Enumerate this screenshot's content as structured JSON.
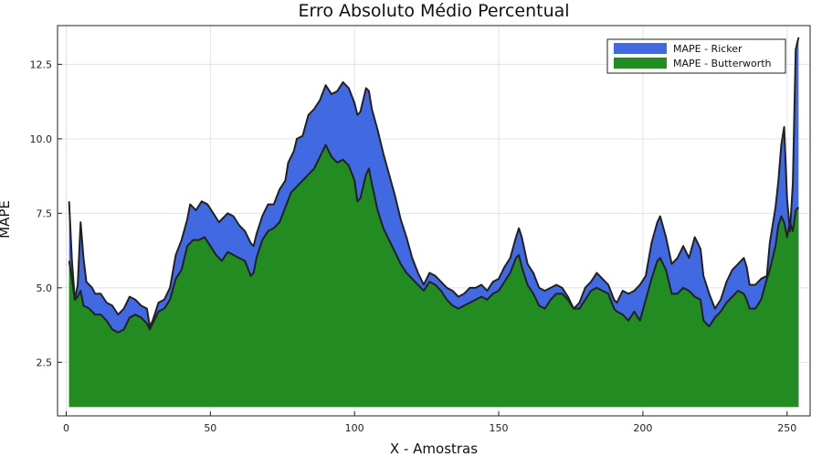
{
  "chart_data": {
    "type": "area",
    "title": "Erro Absoluto Médio Percentual",
    "xlabel": "X - Amostras",
    "ylabel": "MAPE",
    "xlim": [
      -3,
      258
    ],
    "ylim": [
      0.7,
      13.8
    ],
    "baseline": 1.0,
    "grid": true,
    "legend_position": "top-right",
    "x_ticks": [
      0,
      50,
      100,
      150,
      200,
      250
    ],
    "y_ticks": [
      2.5,
      5.0,
      7.5,
      10.0,
      12.5
    ],
    "x_tick_labels": [
      "0",
      "50",
      "100",
      "150",
      "200",
      "250"
    ],
    "y_tick_labels": [
      "2.5",
      "5.0",
      "7.5",
      "10.0",
      "12.5"
    ],
    "series": [
      {
        "name": "MAPE - Ricker",
        "color": "#4169e1",
        "points": [
          [
            1,
            7.9
          ],
          [
            2,
            5.9
          ],
          [
            3,
            4.6
          ],
          [
            4,
            5.1
          ],
          [
            5,
            7.2
          ],
          [
            6,
            6.0
          ],
          [
            7,
            5.2
          ],
          [
            8,
            5.1
          ],
          [
            9,
            5.0
          ],
          [
            10,
            4.8
          ],
          [
            12,
            4.8
          ],
          [
            14,
            4.5
          ],
          [
            16,
            4.4
          ],
          [
            18,
            4.1
          ],
          [
            20,
            4.3
          ],
          [
            22,
            4.7
          ],
          [
            24,
            4.6
          ],
          [
            26,
            4.4
          ],
          [
            28,
            4.3
          ],
          [
            29,
            3.7
          ],
          [
            30,
            3.9
          ],
          [
            32,
            4.5
          ],
          [
            34,
            4.6
          ],
          [
            36,
            5.0
          ],
          [
            38,
            6.1
          ],
          [
            40,
            6.6
          ],
          [
            42,
            7.3
          ],
          [
            43,
            7.8
          ],
          [
            45,
            7.6
          ],
          [
            47,
            7.9
          ],
          [
            49,
            7.8
          ],
          [
            51,
            7.5
          ],
          [
            53,
            7.2
          ],
          [
            56,
            7.5
          ],
          [
            58,
            7.4
          ],
          [
            60,
            7.1
          ],
          [
            62,
            6.9
          ],
          [
            64,
            6.5
          ],
          [
            65,
            6.4
          ],
          [
            66,
            6.8
          ],
          [
            68,
            7.4
          ],
          [
            70,
            7.8
          ],
          [
            72,
            7.8
          ],
          [
            74,
            8.3
          ],
          [
            76,
            8.6
          ],
          [
            77,
            9.2
          ],
          [
            79,
            9.6
          ],
          [
            80,
            10.0
          ],
          [
            82,
            10.1
          ],
          [
            84,
            10.8
          ],
          [
            86,
            11.0
          ],
          [
            88,
            11.3
          ],
          [
            90,
            11.8
          ],
          [
            92,
            11.5
          ],
          [
            94,
            11.6
          ],
          [
            96,
            11.9
          ],
          [
            98,
            11.7
          ],
          [
            100,
            11.2
          ],
          [
            101,
            10.8
          ],
          [
            102,
            10.9
          ],
          [
            104,
            11.7
          ],
          [
            105,
            11.6
          ],
          [
            106,
            11.0
          ],
          [
            108,
            10.3
          ],
          [
            110,
            9.5
          ],
          [
            112,
            8.8
          ],
          [
            114,
            8.1
          ],
          [
            116,
            7.3
          ],
          [
            118,
            6.7
          ],
          [
            120,
            6.0
          ],
          [
            122,
            5.5
          ],
          [
            124,
            5.1
          ],
          [
            126,
            5.5
          ],
          [
            128,
            5.4
          ],
          [
            130,
            5.2
          ],
          [
            132,
            5.0
          ],
          [
            134,
            4.9
          ],
          [
            136,
            4.7
          ],
          [
            138,
            4.8
          ],
          [
            140,
            5.0
          ],
          [
            142,
            5.0
          ],
          [
            144,
            5.1
          ],
          [
            146,
            4.9
          ],
          [
            148,
            5.2
          ],
          [
            150,
            5.3
          ],
          [
            152,
            5.7
          ],
          [
            154,
            6.0
          ],
          [
            156,
            6.7
          ],
          [
            157,
            7.0
          ],
          [
            158,
            6.7
          ],
          [
            160,
            5.8
          ],
          [
            162,
            5.5
          ],
          [
            164,
            5.0
          ],
          [
            166,
            4.9
          ],
          [
            168,
            5.0
          ],
          [
            170,
            5.1
          ],
          [
            172,
            5.0
          ],
          [
            174,
            4.7
          ],
          [
            176,
            4.3
          ],
          [
            178,
            4.5
          ],
          [
            180,
            5.0
          ],
          [
            182,
            5.2
          ],
          [
            184,
            5.5
          ],
          [
            186,
            5.3
          ],
          [
            188,
            5.1
          ],
          [
            190,
            4.6
          ],
          [
            191,
            4.5
          ],
          [
            193,
            4.9
          ],
          [
            195,
            4.8
          ],
          [
            197,
            4.9
          ],
          [
            199,
            5.1
          ],
          [
            201,
            5.4
          ],
          [
            203,
            6.5
          ],
          [
            205,
            7.2
          ],
          [
            206,
            7.4
          ],
          [
            208,
            6.7
          ],
          [
            210,
            5.8
          ],
          [
            212,
            6.0
          ],
          [
            214,
            6.4
          ],
          [
            216,
            6.0
          ],
          [
            218,
            6.7
          ],
          [
            220,
            6.3
          ],
          [
            221,
            5.4
          ],
          [
            223,
            4.8
          ],
          [
            225,
            4.3
          ],
          [
            227,
            4.6
          ],
          [
            229,
            5.2
          ],
          [
            231,
            5.6
          ],
          [
            233,
            5.8
          ],
          [
            235,
            6.0
          ],
          [
            236,
            5.7
          ],
          [
            237,
            5.1
          ],
          [
            239,
            5.1
          ],
          [
            241,
            5.3
          ],
          [
            243,
            5.4
          ],
          [
            244,
            6.5
          ],
          [
            246,
            7.7
          ],
          [
            247,
            8.6
          ],
          [
            248,
            9.8
          ],
          [
            249,
            10.4
          ],
          [
            250,
            8.0
          ],
          [
            251,
            6.9
          ],
          [
            252,
            8.5
          ],
          [
            253,
            13.0
          ],
          [
            254,
            13.4
          ]
        ]
      },
      {
        "name": "MAPE - Butterworth",
        "color": "#228b22",
        "points": [
          [
            1,
            5.9
          ],
          [
            2,
            5.3
          ],
          [
            3,
            4.6
          ],
          [
            4,
            4.7
          ],
          [
            5,
            4.9
          ],
          [
            6,
            4.4
          ],
          [
            8,
            4.3
          ],
          [
            10,
            4.1
          ],
          [
            12,
            4.1
          ],
          [
            14,
            3.9
          ],
          [
            16,
            3.6
          ],
          [
            18,
            3.5
          ],
          [
            20,
            3.6
          ],
          [
            22,
            4.0
          ],
          [
            24,
            4.1
          ],
          [
            26,
            4.0
          ],
          [
            28,
            3.8
          ],
          [
            29,
            3.6
          ],
          [
            30,
            3.8
          ],
          [
            32,
            4.2
          ],
          [
            34,
            4.3
          ],
          [
            36,
            4.6
          ],
          [
            38,
            5.3
          ],
          [
            40,
            5.6
          ],
          [
            42,
            6.4
          ],
          [
            44,
            6.6
          ],
          [
            46,
            6.6
          ],
          [
            48,
            6.7
          ],
          [
            50,
            6.4
          ],
          [
            52,
            6.1
          ],
          [
            54,
            5.9
          ],
          [
            56,
            6.2
          ],
          [
            58,
            6.1
          ],
          [
            60,
            6.0
          ],
          [
            62,
            5.9
          ],
          [
            64,
            5.4
          ],
          [
            65,
            5.5
          ],
          [
            66,
            6.0
          ],
          [
            68,
            6.6
          ],
          [
            70,
            6.9
          ],
          [
            72,
            7.0
          ],
          [
            74,
            7.2
          ],
          [
            76,
            7.7
          ],
          [
            78,
            8.2
          ],
          [
            80,
            8.4
          ],
          [
            82,
            8.6
          ],
          [
            84,
            8.8
          ],
          [
            86,
            9.0
          ],
          [
            88,
            9.4
          ],
          [
            90,
            9.8
          ],
          [
            92,
            9.4
          ],
          [
            94,
            9.2
          ],
          [
            96,
            9.3
          ],
          [
            98,
            9.1
          ],
          [
            100,
            8.6
          ],
          [
            101,
            7.9
          ],
          [
            102,
            8.0
          ],
          [
            104,
            8.8
          ],
          [
            105,
            9.0
          ],
          [
            106,
            8.5
          ],
          [
            108,
            7.6
          ],
          [
            110,
            7.0
          ],
          [
            112,
            6.6
          ],
          [
            114,
            6.2
          ],
          [
            116,
            5.8
          ],
          [
            118,
            5.5
          ],
          [
            120,
            5.3
          ],
          [
            122,
            5.1
          ],
          [
            124,
            4.9
          ],
          [
            126,
            5.2
          ],
          [
            128,
            5.1
          ],
          [
            130,
            4.9
          ],
          [
            132,
            4.6
          ],
          [
            134,
            4.4
          ],
          [
            136,
            4.3
          ],
          [
            138,
            4.4
          ],
          [
            140,
            4.5
          ],
          [
            142,
            4.6
          ],
          [
            144,
            4.7
          ],
          [
            146,
            4.6
          ],
          [
            148,
            4.8
          ],
          [
            150,
            4.9
          ],
          [
            152,
            5.2
          ],
          [
            154,
            5.5
          ],
          [
            156,
            6.0
          ],
          [
            157,
            6.1
          ],
          [
            158,
            5.7
          ],
          [
            160,
            5.1
          ],
          [
            162,
            4.8
          ],
          [
            164,
            4.4
          ],
          [
            166,
            4.3
          ],
          [
            168,
            4.6
          ],
          [
            170,
            4.8
          ],
          [
            172,
            4.8
          ],
          [
            174,
            4.6
          ],
          [
            176,
            4.3
          ],
          [
            178,
            4.3
          ],
          [
            180,
            4.6
          ],
          [
            182,
            4.9
          ],
          [
            184,
            5.0
          ],
          [
            186,
            4.9
          ],
          [
            188,
            4.8
          ],
          [
            190,
            4.3
          ],
          [
            191,
            4.2
          ],
          [
            193,
            4.1
          ],
          [
            195,
            3.9
          ],
          [
            197,
            4.2
          ],
          [
            199,
            3.9
          ],
          [
            201,
            4.6
          ],
          [
            203,
            5.3
          ],
          [
            205,
            5.9
          ],
          [
            206,
            6.0
          ],
          [
            208,
            5.6
          ],
          [
            210,
            4.8
          ],
          [
            212,
            4.8
          ],
          [
            214,
            5.0
          ],
          [
            216,
            4.9
          ],
          [
            218,
            4.7
          ],
          [
            220,
            4.6
          ],
          [
            221,
            3.9
          ],
          [
            223,
            3.7
          ],
          [
            225,
            4.0
          ],
          [
            227,
            4.2
          ],
          [
            229,
            4.5
          ],
          [
            231,
            4.7
          ],
          [
            233,
            4.9
          ],
          [
            235,
            4.8
          ],
          [
            236,
            4.6
          ],
          [
            237,
            4.3
          ],
          [
            239,
            4.3
          ],
          [
            241,
            4.6
          ],
          [
            243,
            5.3
          ],
          [
            244,
            5.6
          ],
          [
            246,
            6.4
          ],
          [
            247,
            7.1
          ],
          [
            248,
            7.4
          ],
          [
            249,
            7.2
          ],
          [
            250,
            6.7
          ],
          [
            251,
            7.2
          ],
          [
            252,
            6.9
          ],
          [
            253,
            7.6
          ],
          [
            254,
            7.7
          ]
        ]
      }
    ]
  }
}
